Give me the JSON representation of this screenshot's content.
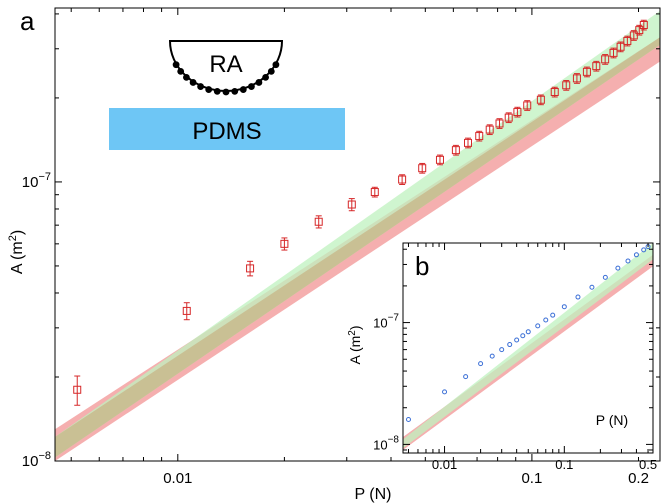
{
  "chart_data": [
    {
      "panel": "a",
      "type": "scatter",
      "scale": "log-log",
      "xlabel": "P (N)",
      "ylabel": "A (m",
      "ylabel_sup": "2",
      "ylabel_close": ")",
      "xlim": [
        0.0045,
        0.23
      ],
      "ylim": [
        1e-08,
        4.2e-07
      ],
      "x_ticks": [
        {
          "value": 0.01,
          "label": "0.01"
        },
        {
          "value": 0.1,
          "label": "0.1"
        },
        {
          "value": 0.2,
          "label": "0.2"
        }
      ],
      "y_ticks": [
        {
          "value": 1e-08,
          "base": "10",
          "exp": "−8"
        },
        {
          "value": 1e-07,
          "base": "10",
          "exp": "−7"
        }
      ],
      "grid": false,
      "marker": "open-square",
      "marker_color": "#d62728",
      "points": [
        {
          "x": 0.0052,
          "y": 1.8e-08,
          "err": 0.12
        },
        {
          "x": 0.0106,
          "y": 3.45e-08,
          "err": 0.07
        },
        {
          "x": 0.016,
          "y": 4.9e-08,
          "err": 0.06
        },
        {
          "x": 0.02,
          "y": 6e-08,
          "err": 0.05
        },
        {
          "x": 0.025,
          "y": 7.2e-08,
          "err": 0.05
        },
        {
          "x": 0.031,
          "y": 8.3e-08,
          "err": 0.05
        },
        {
          "x": 0.036,
          "y": 9.2e-08,
          "err": 0.04
        },
        {
          "x": 0.043,
          "y": 1.02e-07,
          "err": 0.04
        },
        {
          "x": 0.049,
          "y": 1.12e-07,
          "err": 0.04
        },
        {
          "x": 0.055,
          "y": 1.2e-07,
          "err": 0.04
        },
        {
          "x": 0.061,
          "y": 1.3e-07,
          "err": 0.04
        },
        {
          "x": 0.066,
          "y": 1.38e-07,
          "err": 0.04
        },
        {
          "x": 0.071,
          "y": 1.46e-07,
          "err": 0.04
        },
        {
          "x": 0.076,
          "y": 1.54e-07,
          "err": 0.04
        },
        {
          "x": 0.081,
          "y": 1.62e-07,
          "err": 0.04
        },
        {
          "x": 0.086,
          "y": 1.7e-07,
          "err": 0.04
        },
        {
          "x": 0.091,
          "y": 1.78e-07,
          "err": 0.04
        },
        {
          "x": 0.097,
          "y": 1.88e-07,
          "err": 0.04
        },
        {
          "x": 0.106,
          "y": 1.97e-07,
          "err": 0.04
        },
        {
          "x": 0.116,
          "y": 2.1e-07,
          "err": 0.04
        },
        {
          "x": 0.125,
          "y": 2.22e-07,
          "err": 0.04
        },
        {
          "x": 0.134,
          "y": 2.35e-07,
          "err": 0.04
        },
        {
          "x": 0.143,
          "y": 2.48e-07,
          "err": 0.04
        },
        {
          "x": 0.152,
          "y": 2.6e-07,
          "err": 0.04
        },
        {
          "x": 0.161,
          "y": 2.75e-07,
          "err": 0.04
        },
        {
          "x": 0.17,
          "y": 2.9e-07,
          "err": 0.04
        },
        {
          "x": 0.178,
          "y": 3.05e-07,
          "err": 0.04
        },
        {
          "x": 0.186,
          "y": 3.2e-07,
          "err": 0.04
        },
        {
          "x": 0.194,
          "y": 3.35e-07,
          "err": 0.04
        },
        {
          "x": 0.201,
          "y": 3.5e-07,
          "err": 0.04
        },
        {
          "x": 0.207,
          "y": 3.65e-07,
          "err": 0.04
        }
      ],
      "bands": [
        {
          "color": "#f4a6a6",
          "x": [
            0.0045,
            0.23
          ],
          "lower": [
            1e-08,
            2.7e-07
          ],
          "upper": [
            1.3e-08,
            3.3e-07
          ]
        },
        {
          "color": "#bff2bf",
          "x": [
            0.0045,
            0.23
          ],
          "lower": [
            1.03e-08,
            3.1e-07
          ],
          "upper": [
            1.22e-08,
            4.1e-07
          ]
        }
      ],
      "overlap_color": "#c9c094",
      "inset_label": {
        "text": "RA"
      },
      "substrate_label": {
        "text": "PDMS",
        "color": "#6ec6f5"
      }
    },
    {
      "panel": "b",
      "type": "scatter",
      "scale": "log-log",
      "xlabel": "P (N)",
      "ylabel": "A (m",
      "ylabel_sup": "2",
      "ylabel_close": ")",
      "xlim": [
        0.0045,
        0.55
      ],
      "ylim": [
        8.5e-09,
        4.5e-07
      ],
      "x_ticks": [
        {
          "value": 0.01,
          "label": "0.01"
        },
        {
          "value": 0.1,
          "label": "0.1"
        },
        {
          "value": 0.5,
          "label": "0.5"
        }
      ],
      "y_ticks": [
        {
          "value": 1e-08,
          "base": "10",
          "exp": "−8"
        },
        {
          "value": 1e-07,
          "base": "10",
          "exp": "−7"
        }
      ],
      "marker": "open-circle",
      "marker_color": "#3b6fd6",
      "points": [
        {
          "x": 0.005,
          "y": 1.6e-08
        },
        {
          "x": 0.01,
          "y": 2.7e-08
        },
        {
          "x": 0.015,
          "y": 3.6e-08
        },
        {
          "x": 0.02,
          "y": 4.6e-08
        },
        {
          "x": 0.025,
          "y": 5.3e-08
        },
        {
          "x": 0.03,
          "y": 6e-08
        },
        {
          "x": 0.035,
          "y": 6.6e-08
        },
        {
          "x": 0.04,
          "y": 7.2e-08
        },
        {
          "x": 0.045,
          "y": 7.8e-08
        },
        {
          "x": 0.05,
          "y": 8.4e-08
        },
        {
          "x": 0.06,
          "y": 9.4e-08
        },
        {
          "x": 0.07,
          "y": 1.05e-07
        },
        {
          "x": 0.08,
          "y": 1.15e-07
        },
        {
          "x": 0.1,
          "y": 1.35e-07
        },
        {
          "x": 0.13,
          "y": 1.62e-07
        },
        {
          "x": 0.17,
          "y": 1.95e-07
        },
        {
          "x": 0.22,
          "y": 2.35e-07
        },
        {
          "x": 0.28,
          "y": 2.8e-07
        },
        {
          "x": 0.34,
          "y": 3.2e-07
        },
        {
          "x": 0.4,
          "y": 3.6e-07
        },
        {
          "x": 0.46,
          "y": 3.95e-07
        },
        {
          "x": 0.5,
          "y": 4.2e-07
        }
      ],
      "bands": [
        {
          "color": "#f4a6a6",
          "x": [
            0.0045,
            0.55
          ],
          "lower": [
            9e-09,
            2.9e-07
          ],
          "upper": [
            1.15e-08,
            3.6e-07
          ]
        },
        {
          "color": "#bff2bf",
          "x": [
            0.0045,
            0.55
          ],
          "lower": [
            9.3e-09,
            3.3e-07
          ],
          "upper": [
            1.1e-08,
            4.5e-07
          ]
        }
      ]
    }
  ]
}
